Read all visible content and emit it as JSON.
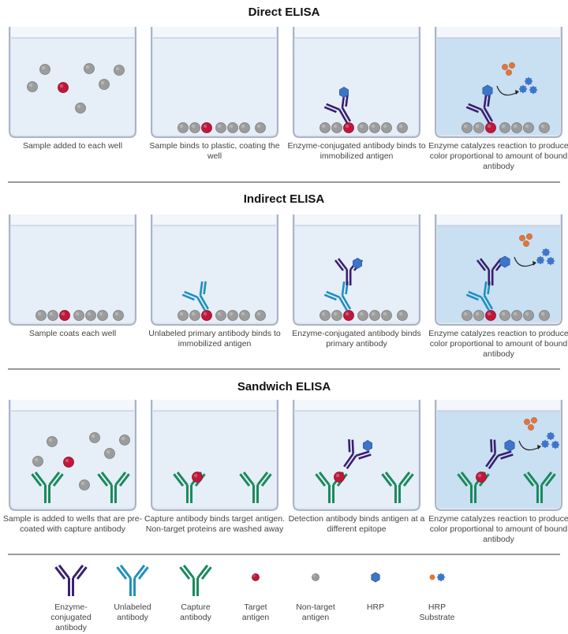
{
  "colors": {
    "well_light": "#e6eef8",
    "well_dark": "#c9dff2",
    "well_top": "#f3f6fb",
    "well_border": "#a9b4c8",
    "target_antigen": "#c0173a",
    "nontarget_antigen": "#9c9c9c",
    "enzyme_antibody": "#3a1f6e",
    "unlabeled_antibody": "#1f8fbf",
    "capture_antibody": "#1a8a5a",
    "hrp": "#3f75c9",
    "substrate": "#e3763a"
  },
  "sections": [
    {
      "title": "Direct ELISA",
      "steps": [
        {
          "caption": "Sample added to each well",
          "scene": "free-sample"
        },
        {
          "caption": "Sample binds to plastic, coating the well",
          "scene": "coated"
        },
        {
          "caption": "Enzyme-conjugated antibody binds to immobilized antigen",
          "scene": "direct-bind"
        },
        {
          "caption": "Enzyme catalyzes reaction to produce color proportional to amount of bound antibody",
          "scene": "direct-react"
        }
      ]
    },
    {
      "title": "Indirect ELISA",
      "steps": [
        {
          "caption": "Sample coats each well",
          "scene": "coated"
        },
        {
          "caption": "Unlabeled primary antibody binds to immobilized antigen",
          "scene": "indirect-primary"
        },
        {
          "caption": "Enzyme-conjugated antibody binds primary antibody",
          "scene": "indirect-secondary"
        },
        {
          "caption": "Enzyme catalyzes reaction to produce color proportional to amount of bound antibody",
          "scene": "indirect-react"
        }
      ]
    },
    {
      "title": "Sandwich ELISA",
      "steps": [
        {
          "caption": "Sample is added to wells that are pre-coated with capture antibody",
          "scene": "sandwich-sample"
        },
        {
          "caption": "Capture antibody binds target antigen. Non-target proteins are washed away",
          "scene": "sandwich-capture"
        },
        {
          "caption": "Detection antibody binds antigen at a different epitope",
          "scene": "sandwich-detect"
        },
        {
          "caption": "Enzyme catalyzes reaction to produce color proportional to amount of bound antibody",
          "scene": "sandwich-react"
        }
      ]
    }
  ],
  "legend": [
    {
      "label": "Enzyme-\nconjugated\nantibody",
      "icon": "enzyme-antibody-icon"
    },
    {
      "label": "Unlabeled\nantibody",
      "icon": "unlabeled-antibody-icon"
    },
    {
      "label": "Capture\nantibody",
      "icon": "capture-antibody-icon"
    },
    {
      "label": "Target\nantigen",
      "icon": "target-antigen-icon"
    },
    {
      "label": "Non-target\nantigen",
      "icon": "nontarget-antigen-icon"
    },
    {
      "label": "HRP",
      "icon": "hrp-icon"
    },
    {
      "label": "HRP\nSubstrate",
      "icon": "hrp-substrate-icon"
    }
  ]
}
